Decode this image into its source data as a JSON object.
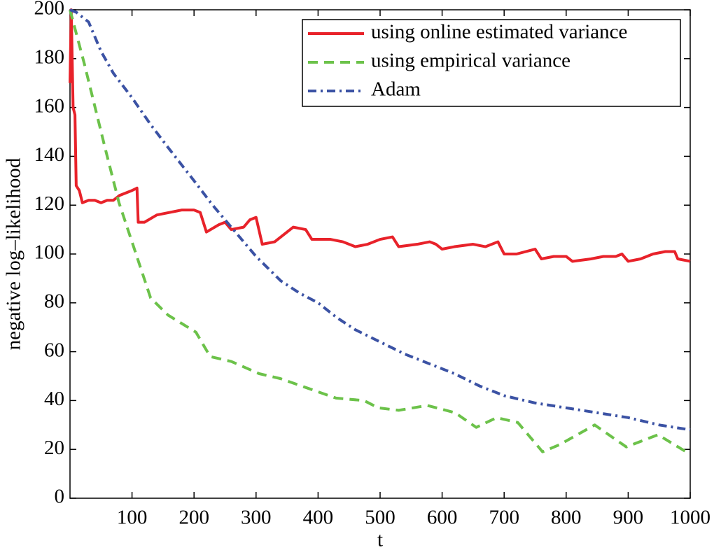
{
  "chart_data": {
    "type": "line",
    "xlabel": "t",
    "ylabel": "negative log–likelihood",
    "xlim": [
      0,
      1000
    ],
    "xticks": [
      100,
      200,
      300,
      400,
      500,
      600,
      700,
      800,
      900,
      1000
    ],
    "ylim": [
      0,
      200
    ],
    "yticks": [
      0,
      20,
      40,
      60,
      80,
      100,
      120,
      140,
      160,
      180,
      200
    ],
    "legend": "upper right",
    "series": [
      {
        "name": "using online estimated variance",
        "color": "#e8222a",
        "dash": "solid",
        "x": [
          0,
          2,
          5,
          8,
          10,
          15,
          20,
          30,
          40,
          50,
          60,
          70,
          80,
          90,
          100,
          108,
          110,
          120,
          140,
          160,
          180,
          200,
          210,
          220,
          240,
          250,
          260,
          280,
          290,
          300,
          310,
          330,
          350,
          360,
          380,
          390,
          420,
          440,
          460,
          480,
          500,
          520,
          530,
          560,
          580,
          590,
          600,
          620,
          650,
          670,
          690,
          700,
          720,
          750,
          760,
          780,
          800,
          810,
          840,
          860,
          880,
          890,
          900,
          920,
          940,
          960,
          975,
          980,
          1000
        ],
        "values": [
          170,
          200,
          160,
          157,
          128,
          126,
          121,
          122,
          122,
          121,
          122,
          122,
          124,
          125,
          126,
          127,
          113,
          113,
          116,
          117,
          118,
          118,
          117,
          109,
          112,
          113,
          110,
          111,
          114,
          115,
          104,
          105,
          109,
          111,
          110,
          106,
          106,
          105,
          103,
          104,
          106,
          107,
          103,
          104,
          105,
          104,
          102,
          103,
          104,
          103,
          105,
          100,
          100,
          102,
          98,
          99,
          99,
          97,
          98,
          99,
          99,
          100,
          97,
          98,
          100,
          101,
          101,
          98,
          97
        ]
      },
      {
        "name": "using empirical variance",
        "color": "#6cc24a",
        "dash": "dashed",
        "x": [
          0,
          23,
          56,
          79,
          113,
          130,
          158,
          203,
          226,
          260,
          305,
          339,
          384,
          429,
          474,
          497,
          530,
          576,
          621,
          655,
          688,
          722,
          762,
          790,
          846,
          897,
          948,
          1000
        ],
        "values": [
          200,
          178,
          144,
          121,
          95,
          82,
          75,
          68,
          58,
          56,
          51,
          49,
          45,
          41,
          40,
          37,
          36,
          38,
          35,
          29,
          33,
          31,
          19,
          22,
          30,
          21,
          26,
          18
        ]
      },
      {
        "name": "Adam",
        "color": "#3b52a4",
        "dash": "dashdot",
        "x": [
          0,
          10,
          30,
          50,
          70,
          100,
          130,
          160,
          200,
          230,
          260,
          300,
          340,
          370,
          400,
          430,
          460,
          500,
          540,
          580,
          620,
          660,
          700,
          750,
          800,
          850,
          900,
          950,
          1000
        ],
        "values": [
          200,
          199,
          195,
          183,
          174,
          164,
          153,
          143,
          130,
          120,
          111,
          99,
          89,
          84,
          80,
          74,
          69,
          64,
          59,
          55,
          51,
          46,
          42,
          39,
          37,
          35,
          33,
          30,
          28
        ]
      }
    ]
  }
}
